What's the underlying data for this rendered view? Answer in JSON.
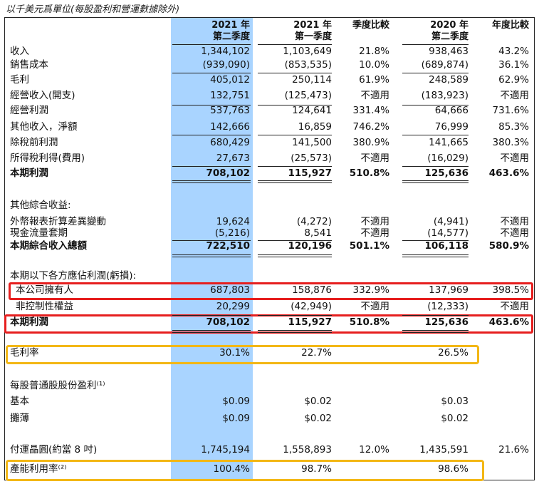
{
  "caption": "以千美元爲單位(每股盈利和營運數據除外)",
  "columns": [
    {
      "line1": "2021 年",
      "line2": "第二季度"
    },
    {
      "line1": "2021 年",
      "line2": "第一季度"
    },
    {
      "line1": "季度比較",
      "line2": ""
    },
    {
      "line1": "2020 年",
      "line2": "第二季度"
    },
    {
      "line1": "年度比較",
      "line2": ""
    }
  ],
  "rows": [
    {
      "label": "收入",
      "v": [
        "1,344,102",
        "1,103,649",
        "21.8%",
        "938,463",
        "43.2%"
      ]
    },
    {
      "label": "銷售成本",
      "v": [
        "(939,090)",
        "(853,535)",
        "10.0%",
        "(689,874)",
        "36.1%"
      ]
    },
    {
      "label": "毛利",
      "v": [
        "405,012",
        "250,114",
        "61.9%",
        "248,589",
        "62.9%"
      ]
    },
    {
      "label": "經營收入(開支)",
      "v": [
        "132,751",
        "(125,473)",
        "不適用",
        "(183,923)",
        "不適用"
      ]
    },
    {
      "label": "經營利潤",
      "v": [
        "537,763",
        "124,641",
        "331.4%",
        "64,666",
        "731.6%"
      ]
    },
    {
      "label": "其他收入，淨額",
      "v": [
        "142,666",
        "16,859",
        "746.2%",
        "76,999",
        "85.3%"
      ]
    },
    {
      "label": "除稅前利潤",
      "v": [
        "680,429",
        "141,500",
        "380.9%",
        "141,665",
        "380.3%"
      ]
    },
    {
      "label": "所得稅利得(費用)",
      "v": [
        "27,673",
        "(25,573)",
        "不適用",
        "(16,029)",
        "不適用"
      ]
    },
    {
      "label": "本期利潤",
      "v": [
        "708,102",
        "115,927",
        "510.8%",
        "125,636",
        "463.6%"
      ]
    },
    {
      "label": "其他綜合收益:",
      "v": [
        "",
        "",
        "",
        "",
        ""
      ]
    },
    {
      "label": "外幣報表折算差異變動",
      "v": [
        "19,624",
        "(4,272)",
        "不適用",
        "(4,941)",
        "不適用"
      ]
    },
    {
      "label": "現金流量套期",
      "v": [
        "(5,216)",
        "8,541",
        "不適用",
        "(14,577)",
        "不適用"
      ]
    },
    {
      "label": "本期綜合收入總額",
      "v": [
        "722,510",
        "120,196",
        "501.1%",
        "106,118",
        "580.9%"
      ]
    },
    {
      "label": "本期以下各方應佔利潤(虧損):",
      "v": [
        "",
        "",
        "",
        "",
        ""
      ]
    },
    {
      "label": "本公司擁有人",
      "v": [
        "687,803",
        "158,876",
        "332.9%",
        "137,969",
        "398.5%"
      ]
    },
    {
      "label": "非控制性權益",
      "v": [
        "20,299",
        "(42,949)",
        "不適用",
        "(12,333)",
        "不適用"
      ]
    },
    {
      "label": "本期利潤",
      "v": [
        "708,102",
        "115,927",
        "510.8%",
        "125,636",
        "463.6%"
      ]
    },
    {
      "label": "毛利率",
      "v": [
        "30.1%",
        "22.7%",
        "",
        "26.5%",
        ""
      ]
    },
    {
      "label": "每股普通股股份盈利⁽¹⁾",
      "v": [
        "",
        "",
        "",
        "",
        ""
      ]
    },
    {
      "label": "基本",
      "v": [
        "$0.09",
        "$0.02",
        "",
        "$0.03",
        ""
      ]
    },
    {
      "label": "攤薄",
      "v": [
        "$0.09",
        "$0.02",
        "",
        "$0.02",
        ""
      ]
    },
    {
      "label": "付運晶圓(約當 8 吋)",
      "v": [
        "1,745,194",
        "1,558,893",
        "12.0%",
        "1,435,591",
        "21.6%"
      ]
    },
    {
      "label": "產能利用率⁽²⁾",
      "v": [
        "100.4%",
        "98.7%",
        "",
        "98.6%",
        ""
      ]
    }
  ],
  "colors": {
    "highlight_column": "#a9d4ff",
    "red_box": "#e61e1e",
    "gold_box": "#f3b715"
  }
}
